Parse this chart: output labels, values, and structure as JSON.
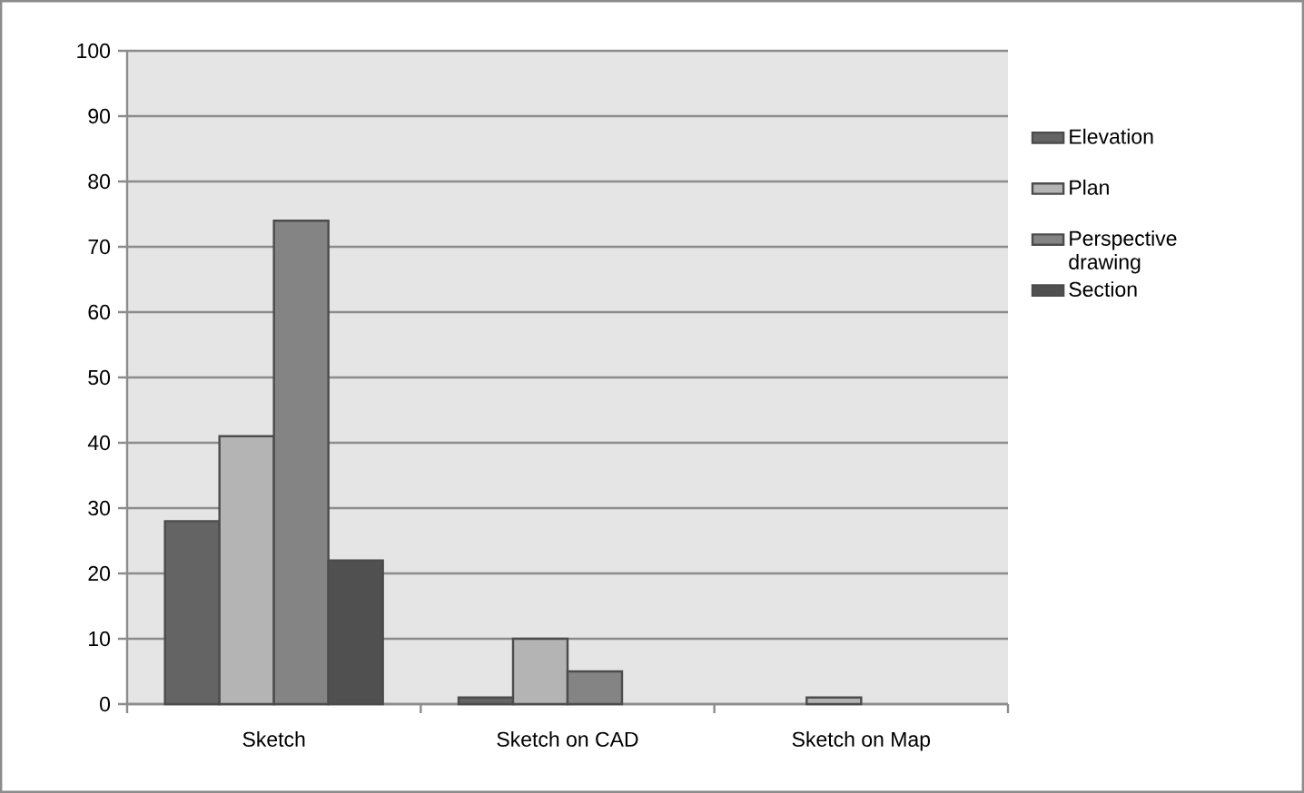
{
  "chart_data": {
    "type": "bar",
    "categories": [
      "Sketch",
      "Sketch on CAD",
      "Sketch on Map"
    ],
    "series": [
      {
        "name": "Elevation",
        "color": "#646464",
        "values": [
          28,
          1,
          null
        ]
      },
      {
        "name": "Plan",
        "color": "#b4b4b4",
        "values": [
          41,
          10,
          1
        ]
      },
      {
        "name": "Perspective drawing",
        "color": "#848484",
        "values": [
          74,
          5,
          null
        ]
      },
      {
        "name": "Section",
        "color": "#505050",
        "values": [
          22,
          null,
          null
        ]
      }
    ],
    "ylim": [
      0,
      100
    ],
    "yticks": [
      0,
      10,
      20,
      30,
      40,
      50,
      60,
      70,
      80,
      90,
      100
    ],
    "grid": "y",
    "legend": "right"
  }
}
